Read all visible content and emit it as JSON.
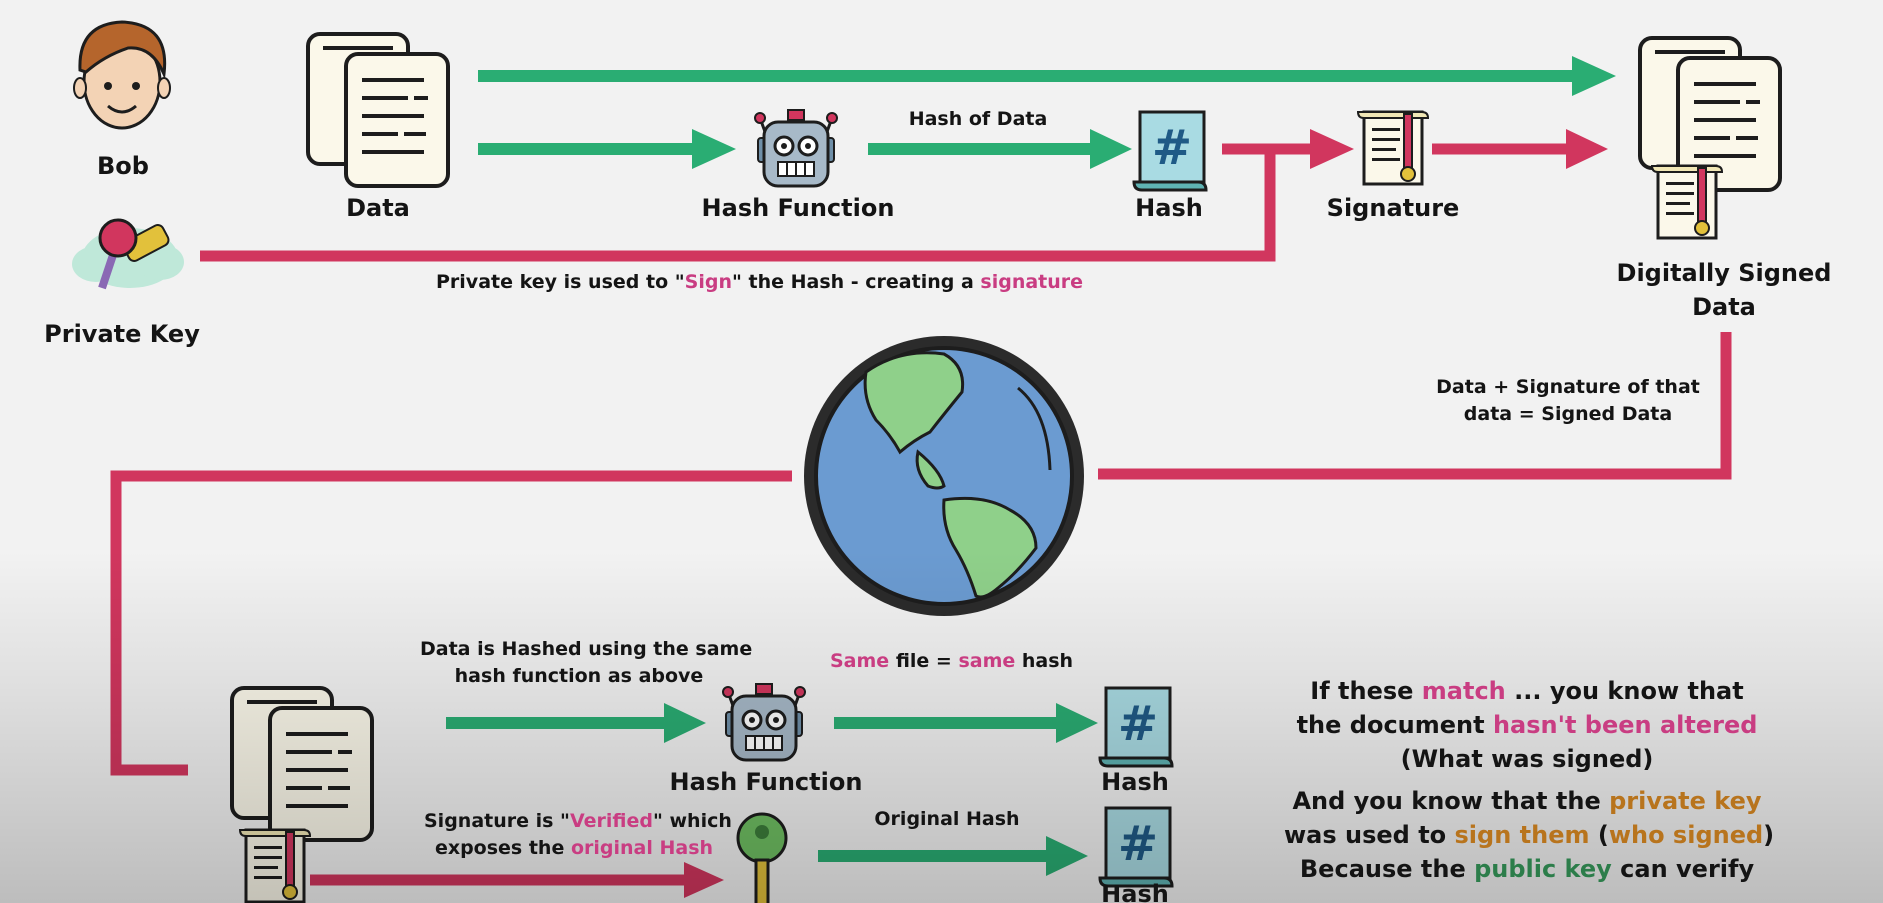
{
  "actor": {
    "name": "Bob"
  },
  "top": {
    "data_label": "Data",
    "hash_function_label": "Hash Function",
    "hash_of_data_label": "Hash of Data",
    "hash_label": "Hash",
    "signature_label": "Signature",
    "private_key_label": "Private Key",
    "signed_data_label_1": "Digitally Signed",
    "signed_data_label_2": "Data",
    "private_key_note": {
      "p1": "Private key is used to \"",
      "p2": "Sign",
      "p3": "\" the Hash  - creating a ",
      "p4": "signature"
    }
  },
  "middle": {
    "signed_data_note_1": "Data + Signature of that",
    "signed_data_note_2": "data = Signed Data"
  },
  "bottom": {
    "hashed_note_1": "Data is Hashed using the same",
    "hashed_note_2": "hash function as above",
    "same_note": {
      "p1": "Same",
      "p2": " file = ",
      "p3": "same",
      "p4": " hash"
    },
    "hash_function_label": "Hash Function",
    "hash_label": "Hash",
    "verified_note": {
      "p1": "Signature is \"",
      "p2": "Verified",
      "p3": "\" which",
      "p4": "exposes the ",
      "p5": "original Hash"
    },
    "original_hash_label": "Original Hash",
    "hash_label_2": "Hash",
    "conclusion": {
      "l1a": "If these ",
      "l1b": "match",
      "l1c": " ... you know that",
      "l2a": "the document ",
      "l2b": "hasn't been altered",
      "l3": "(What was signed)",
      "l4a": "And you know that the ",
      "l4b": "private key",
      "l5a": "was used to ",
      "l5b": "sign them",
      "l5c": " (",
      "l5d": "who signed",
      "l5e": ")",
      "l6a": "Because the ",
      "l6b": "public key",
      "l6c": " can verify"
    }
  },
  "colors": {
    "green_arrow": "#2aad73",
    "pink_arrow": "#d1365e",
    "ocean": "#6b9bd1",
    "land": "#8fd08a",
    "accent_pink": "#c93d82",
    "accent_orange": "#b8741d",
    "accent_green": "#2c7d4a"
  }
}
